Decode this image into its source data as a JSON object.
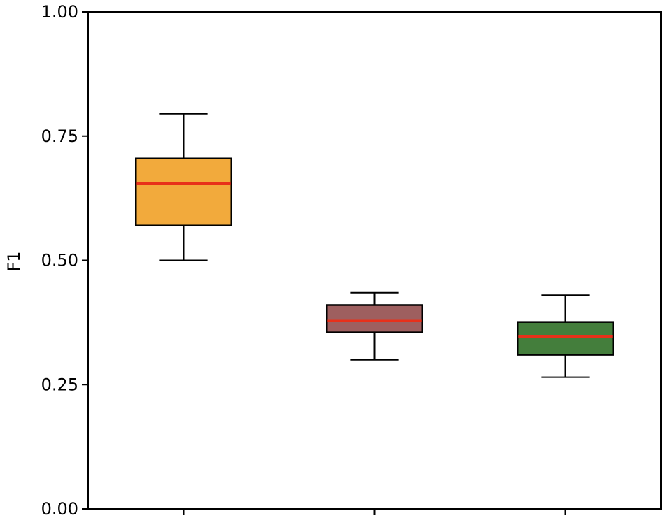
{
  "chart_data": {
    "type": "box",
    "title": "",
    "xlabel": "",
    "ylabel": "F1",
    "ylim": [
      0,
      1
    ],
    "yticks": [
      "0.00",
      "0.25",
      "0.50",
      "0.75",
      "1.00"
    ],
    "grid": false,
    "boxes": [
      {
        "whisker_low": 0.5,
        "q1": 0.57,
        "median": 0.655,
        "q3": 0.705,
        "whisker_high": 0.795,
        "color": "#f2aa3c"
      },
      {
        "whisker_low": 0.3,
        "q1": 0.355,
        "median": 0.378,
        "q3": 0.41,
        "whisker_high": 0.435,
        "color": "#9e5f5f"
      },
      {
        "whisker_low": 0.265,
        "q1": 0.31,
        "median": 0.347,
        "q3": 0.376,
        "whisker_high": 0.43,
        "color": "#447e3c"
      }
    ],
    "median_color": "#e8301a"
  }
}
